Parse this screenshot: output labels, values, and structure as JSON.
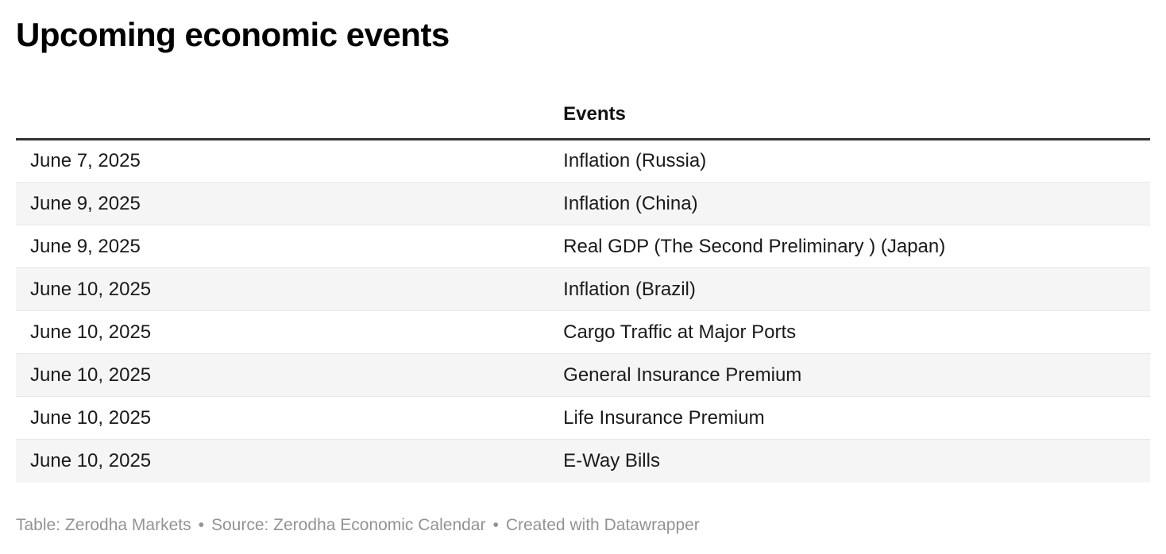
{
  "chart_data": {
    "type": "table",
    "title": "Upcoming economic events",
    "columns": [
      "",
      "Events"
    ],
    "rows": [
      [
        "June 7, 2025",
        "Inflation (Russia)"
      ],
      [
        "June 9, 2025",
        "Inflation (China)"
      ],
      [
        "June 9, 2025",
        "Real GDP (The Second Preliminary ) (Japan)"
      ],
      [
        "June 10, 2025",
        "Inflation (Brazil)"
      ],
      [
        "June 10, 2025",
        "Cargo Traffic at Major Ports"
      ],
      [
        "June 10, 2025",
        "General Insurance Premium"
      ],
      [
        "June 10, 2025",
        "Life Insurance Premium"
      ],
      [
        "June 10, 2025",
        "E-Way Bills"
      ]
    ],
    "layout": {
      "zebra_striping": true,
      "striped_rows": "even",
      "grid": "horizontal-dividers",
      "header_rule": "thick-dark",
      "legend": "none"
    }
  },
  "footer": {
    "table_credit": "Table: Zerodha Markets",
    "separator": "•",
    "source": "Source: Zerodha Economic Calendar",
    "created": "Created with Datawrapper"
  },
  "colors": {
    "title": "#000000",
    "body_text": "#1a1a1a",
    "zebra_row": "#f5f5f5",
    "row_divider": "#e7e7e7",
    "header_rule": "#333333",
    "footer_text": "#939393",
    "background": "#ffffff"
  }
}
